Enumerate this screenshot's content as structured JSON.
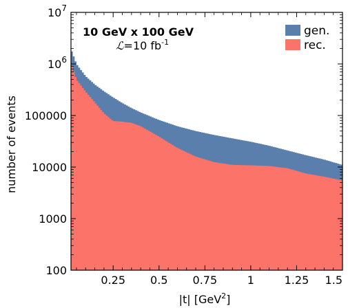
{
  "chart_data": {
    "type": "area",
    "title": "",
    "xlabel": "|t| [GeV",
    "xlabel_sup": "2",
    "xlabel_suffix": "]",
    "ylabel": "number of events",
    "xlim": [
      0.02,
      1.5
    ],
    "ylim": [
      100,
      10000000
    ],
    "yscale": "log",
    "grid": false,
    "legend_position": "top-right",
    "x_ticks": [
      0.25,
      0.5,
      0.75,
      1,
      1.25,
      1.5
    ],
    "x_tick_labels": [
      "0.25",
      "0.5",
      "0.75",
      "1",
      "1.25",
      "1.5"
    ],
    "y_ticks": [
      100,
      1000,
      10000,
      100000,
      1000000,
      10000000
    ],
    "y_tick_labels": [
      {
        "base": "100",
        "exp": ""
      },
      {
        "base": "1000",
        "exp": ""
      },
      {
        "base": "10000",
        "exp": ""
      },
      {
        "base": "100000",
        "exp": ""
      },
      {
        "base": "10",
        "exp": "6"
      },
      {
        "base": "10",
        "exp": "7"
      }
    ],
    "annotations": {
      "energy": "10 GeV x 100 GeV",
      "lumi_symbol": "ℒ",
      "lumi_text": "=10 fb",
      "lumi_sup": "-1"
    },
    "series": [
      {
        "name": "gen.",
        "color": "#5b7fad",
        "x": [
          0.02,
          0.05,
          0.1,
          0.15,
          0.2,
          0.25,
          0.3,
          0.35,
          0.4,
          0.5,
          0.6,
          0.7,
          0.8,
          0.9,
          1.0,
          1.1,
          1.2,
          1.3,
          1.4,
          1.5
        ],
        "values": [
          1950000,
          1000000,
          580000,
          400000,
          295000,
          225000,
          175000,
          140000,
          115000,
          82000,
          62000,
          50000,
          42000,
          36000,
          31000,
          26000,
          21000,
          17000,
          14000,
          11000
        ]
      },
      {
        "name": "rec.",
        "color": "#fb7369",
        "x": [
          0.02,
          0.05,
          0.1,
          0.15,
          0.2,
          0.25,
          0.3,
          0.35,
          0.4,
          0.5,
          0.6,
          0.7,
          0.8,
          0.9,
          1.0,
          1.1,
          1.2,
          1.3,
          1.4,
          1.5
        ],
        "values": [
          1000000,
          500000,
          290000,
          180000,
          110000,
          78000,
          76000,
          72000,
          62000,
          39000,
          23500,
          16000,
          12500,
          11000,
          10800,
          10500,
          9500,
          7500,
          6500,
          5500
        ]
      }
    ]
  }
}
